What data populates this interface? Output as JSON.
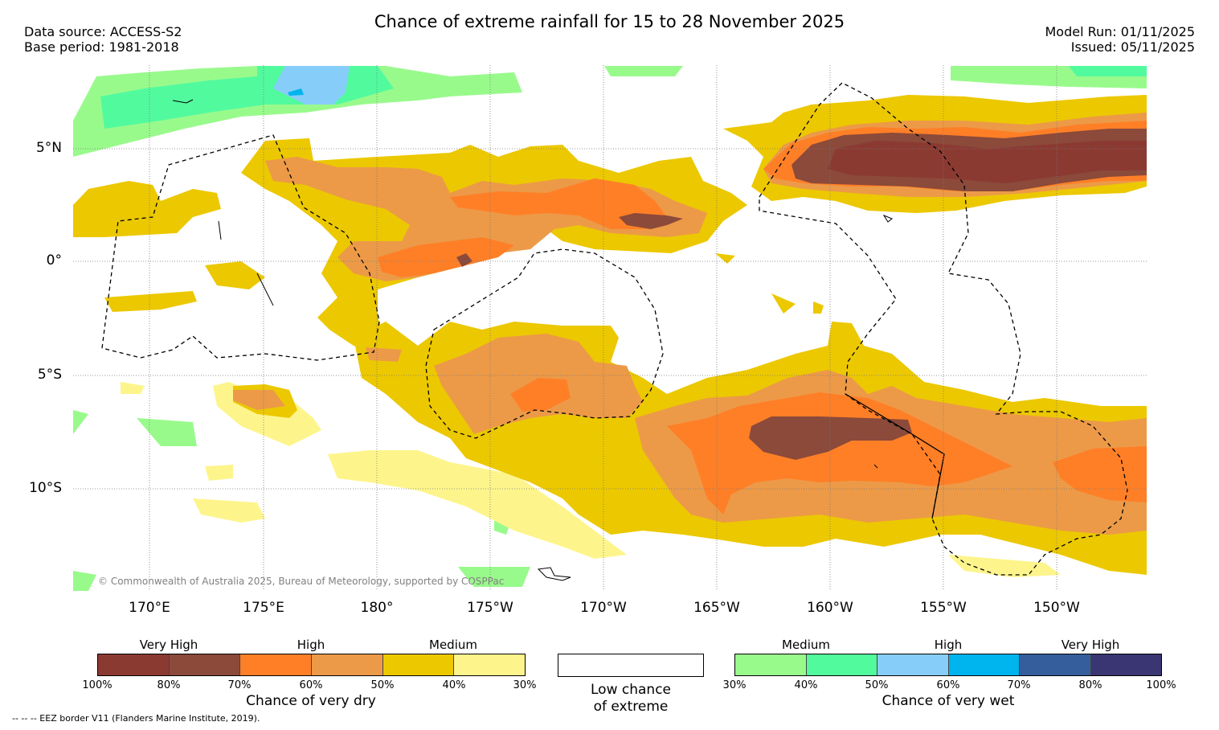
{
  "title": "Chance of extreme rainfall for 15 to 28 November 2025",
  "meta": {
    "data_source": "Data source: ACCESS-S2",
    "base_period": "Base period: 1981-2018",
    "model_run": "Model Run: 01/11/2025",
    "issued": "Issued: 05/11/2025"
  },
  "map": {
    "lat_labels": [
      "5°N",
      "0°",
      "5°S",
      "10°S"
    ],
    "lon_labels": [
      "170°E",
      "175°E",
      "180°",
      "175°W",
      "170°W",
      "165°W",
      "160°W",
      "155°W",
      "150°W"
    ],
    "copyright": "© Commonwealth of Australia 2025, Bureau of Meteorology, supported by COSPPac"
  },
  "legend": {
    "dry": {
      "title": "Chance of very dry",
      "categories": [
        "Very High",
        "High",
        "Medium"
      ],
      "ticks": [
        "100%",
        "80%",
        "70%",
        "60%",
        "50%",
        "40%",
        "30%"
      ],
      "colors": [
        "#8b3a32",
        "#8b4a3a",
        "#ff7f27",
        "#ec9a48",
        "#ecc800",
        "#fdf58c"
      ]
    },
    "neutral": {
      "line1": "Low chance",
      "line2": "of extreme"
    },
    "wet": {
      "title": "Chance of very wet",
      "categories": [
        "Medium",
        "High",
        "Very High"
      ],
      "ticks": [
        "30%",
        "40%",
        "50%",
        "60%",
        "70%",
        "80%",
        "100%"
      ],
      "colors": [
        "#99fa8c",
        "#52fa9e",
        "#87cdfa",
        "#00b4ee",
        "#355e9c",
        "#3a3673"
      ]
    }
  },
  "eez_note": "--  --  -- EEZ border V11 (Flanders Marine Institute, 2019)."
}
